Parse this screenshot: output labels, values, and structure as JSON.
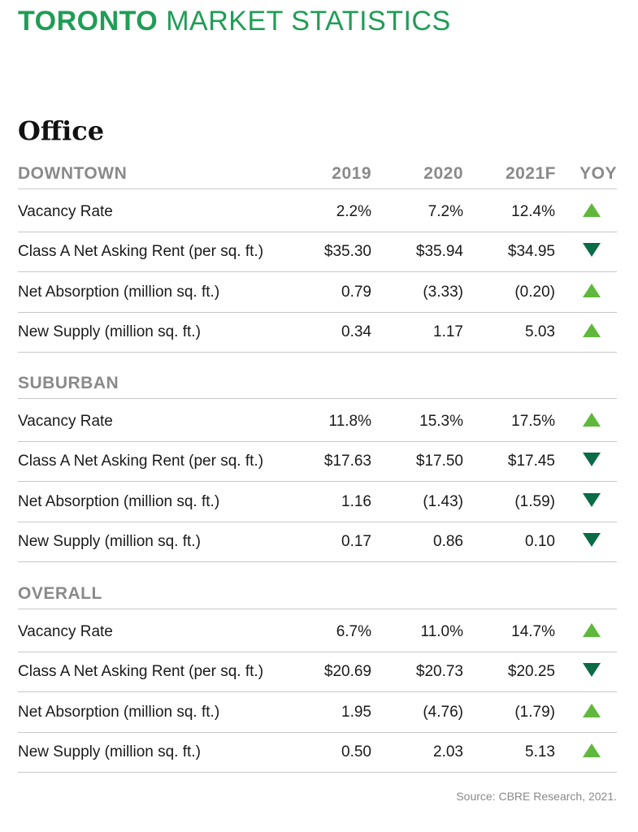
{
  "title_bold": "TORONTO",
  "title_rest": "MARKET STATISTICS",
  "section": "Office",
  "columns": {
    "y2019": "2019",
    "y2020": "2020",
    "y2021": "2021F",
    "yoy": "YOY"
  },
  "colors": {
    "title": "#1f9d55",
    "up": "#5fb83c",
    "down": "#0a6b47"
  },
  "groups": [
    {
      "name": "DOWNTOWN",
      "rows": [
        {
          "label": "Vacancy Rate",
          "y2019": "2.2%",
          "y2020": "7.2%",
          "y2021": "12.4%",
          "yoy": "up"
        },
        {
          "label": "Class A Net Asking Rent (per sq. ft.)",
          "y2019": "$35.30",
          "y2020": "$35.94",
          "y2021": "$34.95",
          "yoy": "down"
        },
        {
          "label": "Net Absorption (million sq. ft.)",
          "y2019": "0.79",
          "y2020": "(3.33)",
          "y2021": "(0.20)",
          "yoy": "up"
        },
        {
          "label": "New Supply (million sq. ft.)",
          "y2019": "0.34",
          "y2020": "1.17",
          "y2021": "5.03",
          "yoy": "up"
        }
      ]
    },
    {
      "name": "SUBURBAN",
      "rows": [
        {
          "label": "Vacancy Rate",
          "y2019": "11.8%",
          "y2020": "15.3%",
          "y2021": "17.5%",
          "yoy": "up"
        },
        {
          "label": "Class A Net Asking Rent (per sq. ft.)",
          "y2019": "$17.63",
          "y2020": "$17.50",
          "y2021": "$17.45",
          "yoy": "down"
        },
        {
          "label": "Net Absorption (million sq. ft.)",
          "y2019": "1.16",
          "y2020": "(1.43)",
          "y2021": "(1.59)",
          "yoy": "down"
        },
        {
          "label": "New Supply (million sq. ft.)",
          "y2019": "0.17",
          "y2020": "0.86",
          "y2021": "0.10",
          "yoy": "down"
        }
      ]
    },
    {
      "name": "OVERALL",
      "rows": [
        {
          "label": "Vacancy Rate",
          "y2019": "6.7%",
          "y2020": "11.0%",
          "y2021": "14.7%",
          "yoy": "up"
        },
        {
          "label": "Class A Net Asking Rent (per sq. ft.)",
          "y2019": "$20.69",
          "y2020": "$20.73",
          "y2021": "$20.25",
          "yoy": "down"
        },
        {
          "label": "Net Absorption (million sq. ft.)",
          "y2019": "1.95",
          "y2020": "(4.76)",
          "y2021": "(1.79)",
          "yoy": "up"
        },
        {
          "label": "New Supply (million sq. ft.)",
          "y2019": "0.50",
          "y2020": "2.03",
          "y2021": "5.13",
          "yoy": "up"
        }
      ]
    }
  ],
  "source": "Source: CBRE Research, 2021."
}
